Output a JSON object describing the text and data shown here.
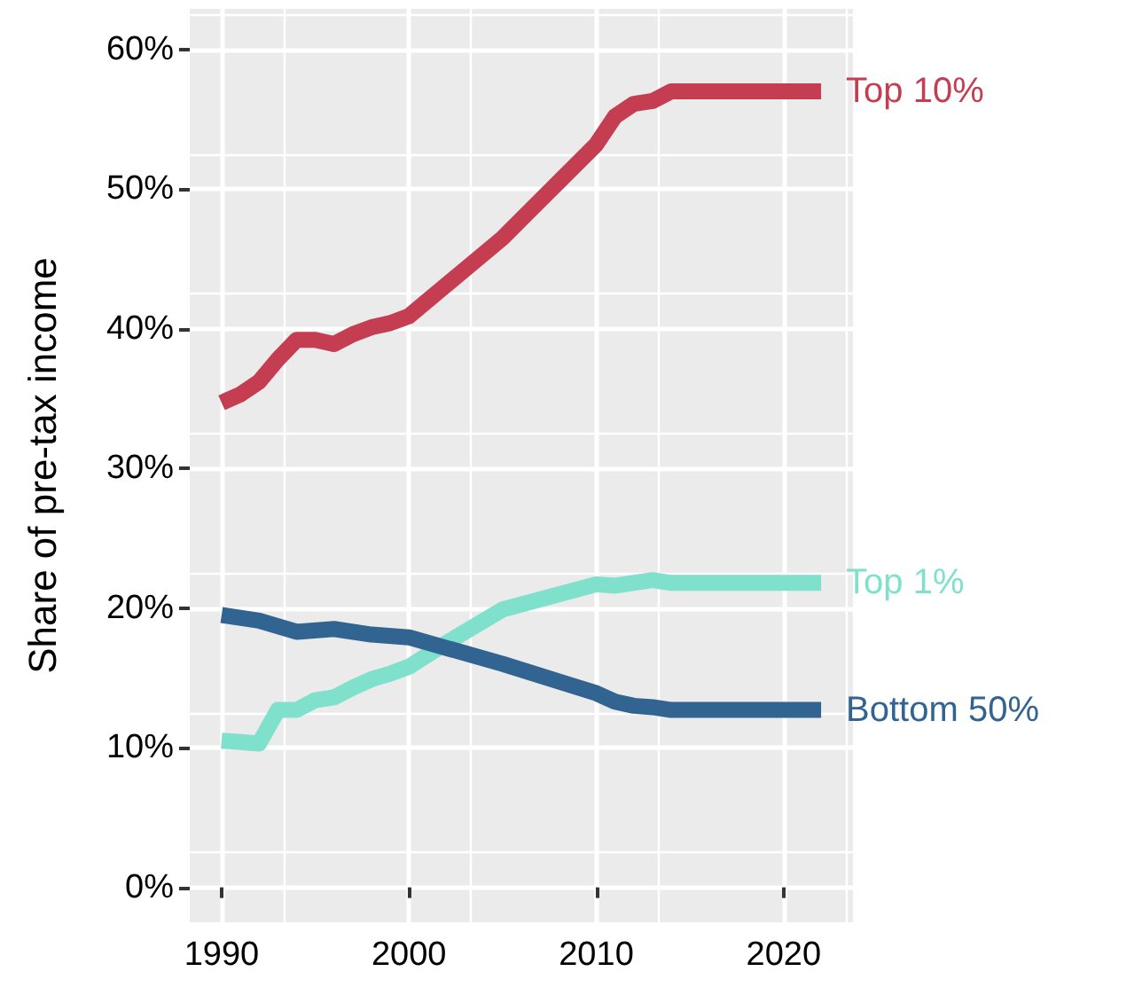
{
  "chart_data": {
    "type": "line",
    "ylabel": "Share of pre-tax income",
    "xlim": [
      1988.3,
      2023.7
    ],
    "ylim": [
      -2.5,
      62.9
    ],
    "xticks": [
      1990,
      2000,
      2010,
      2020
    ],
    "yticks": [
      {
        "value": 0,
        "label": "0%"
      },
      {
        "value": 10,
        "label": "10%"
      },
      {
        "value": 20,
        "label": "20%"
      },
      {
        "value": 30,
        "label": "30%"
      },
      {
        "value": 40,
        "label": "40%"
      },
      {
        "value": 50,
        "label": "50%"
      },
      {
        "value": 60,
        "label": "60%"
      }
    ],
    "grid": true,
    "legend": false,
    "marker": "none",
    "line_style": "solid",
    "series": [
      {
        "name": "Top 10%",
        "color": "#c53d51",
        "x": [
          1990,
          1991,
          1992,
          1993,
          1994,
          1995,
          1996,
          1997,
          1998,
          1999,
          2000,
          2005,
          2010,
          2011,
          2012,
          2013,
          2014,
          2022
        ],
        "values": [
          34.7,
          35.3,
          36.2,
          37.8,
          39.2,
          39.2,
          38.9,
          39.6,
          40.1,
          40.4,
          40.9,
          46.5,
          53.2,
          55.2,
          56.1,
          56.3,
          57.0,
          57.0
        ]
      },
      {
        "name": "Top 1%",
        "color": "#7fe1cb",
        "x": [
          1990,
          1991,
          1992,
          1993,
          1994,
          1995,
          1996,
          1997,
          1998,
          1999,
          2000,
          2002,
          2005,
          2010,
          2011,
          2013,
          2014,
          2022
        ],
        "values": [
          10.5,
          10.4,
          10.3,
          12.7,
          12.7,
          13.4,
          13.6,
          14.3,
          14.9,
          15.3,
          15.8,
          17.5,
          19.9,
          21.7,
          21.6,
          22.0,
          21.8,
          21.8
        ]
      },
      {
        "name": "Bottom 50%",
        "color": "#316491",
        "x": [
          1990,
          1992,
          1994,
          1996,
          1998,
          2000,
          2005,
          2010,
          2011,
          2012,
          2013,
          2014,
          2022
        ],
        "values": [
          19.5,
          19.1,
          18.3,
          18.5,
          18.1,
          17.9,
          16.0,
          13.9,
          13.3,
          13.0,
          12.9,
          12.7,
          12.7
        ]
      }
    ]
  }
}
